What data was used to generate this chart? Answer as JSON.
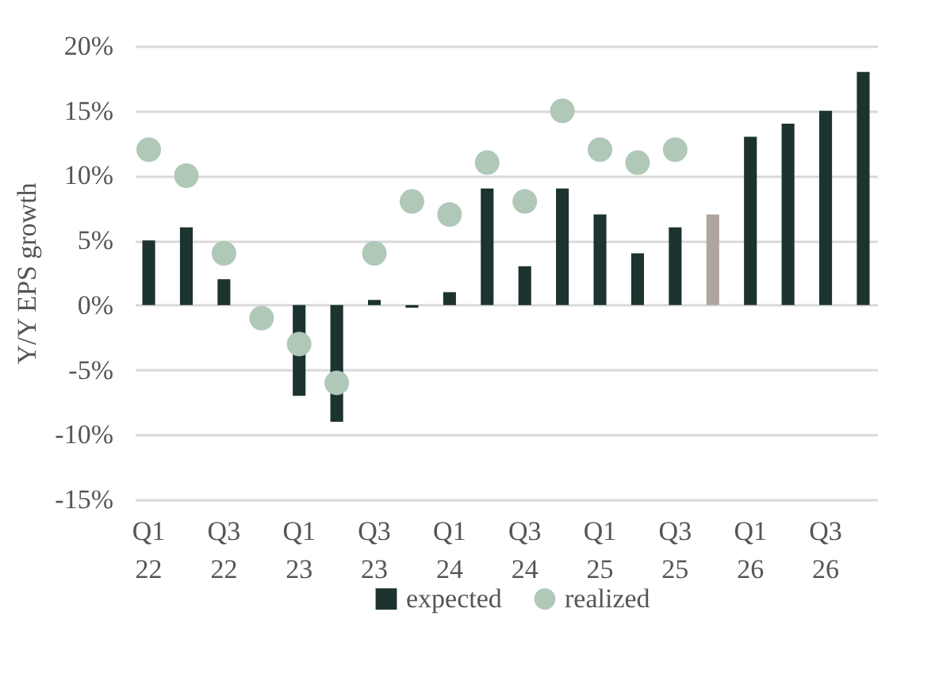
{
  "chart_data": {
    "type": "bar",
    "ylabel": "Y/Y EPS growth",
    "categories": [
      "Q1 22",
      null,
      "Q3 22",
      null,
      "Q1 23",
      null,
      "Q3 23",
      null,
      "Q1 24",
      null,
      "Q3 24",
      null,
      "Q1 25",
      null,
      "Q3 25",
      null,
      "Q1 26",
      null,
      "Q3 26",
      null
    ],
    "series": [
      {
        "name": "expected",
        "color": "#1c3330",
        "colors": [
          "#1c3330",
          "#1c3330",
          "#1c3330",
          "#1c3330",
          "#1c3330",
          "#1c3330",
          "#1c3330",
          "#1c3330",
          "#1c3330",
          "#1c3330",
          "#1c3330",
          "#1c3330",
          "#1c3330",
          "#1c3330",
          "#1c3330",
          "#b0a49e",
          "#1c3330",
          "#1c3330",
          "#1c3330",
          "#1c3330"
        ],
        "values": [
          5,
          6,
          2,
          null,
          -7,
          -9,
          0.4,
          -0.2,
          1,
          9,
          3,
          9,
          7,
          4,
          6,
          7,
          13,
          14,
          15,
          18
        ]
      },
      {
        "name": "realized",
        "type": "scatter",
        "color": "#b0c8b8",
        "marker": "circle",
        "values": [
          12,
          10,
          4,
          -1,
          -3,
          -6,
          4,
          8,
          7,
          11,
          8,
          15,
          12,
          11,
          12,
          null,
          null,
          null,
          null,
          null
        ]
      }
    ],
    "ylim": [
      -15,
      20
    ],
    "yticks": [
      {
        "value": -15,
        "label": "-15%"
      },
      {
        "value": -10,
        "label": "-10%"
      },
      {
        "value": -5,
        "label": "-5%"
      },
      {
        "value": 0,
        "label": "0%"
      },
      {
        "value": 5,
        "label": "5%"
      },
      {
        "value": 10,
        "label": "10%"
      },
      {
        "value": 15,
        "label": "15%"
      },
      {
        "value": 20,
        "label": "20%"
      }
    ],
    "grid": "y",
    "legend": "bottom"
  }
}
